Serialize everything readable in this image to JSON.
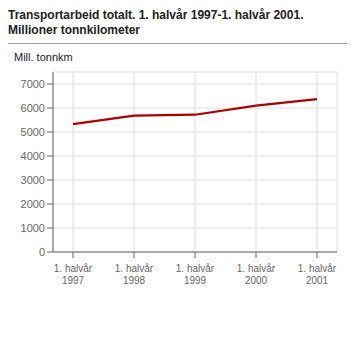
{
  "chart_data": {
    "type": "line",
    "title": "Transportarbeid totalt. 1. halvår 1997-1. halvår 2001.",
    "subtitle": "Millioner tonnkilometer",
    "ylabel": "Mill. tonnkm",
    "categories": [
      "1. halvår\n1997",
      "1. halvår\n1998",
      "1. halvår\n1999",
      "1. halvår\n2000",
      "1. halvår\n2001"
    ],
    "values": [
      5330,
      5680,
      5720,
      6100,
      6370
    ],
    "color": "#aa0000",
    "ylim": [
      0,
      7500
    ],
    "yticks": [
      0,
      1000,
      2000,
      3000,
      4000,
      5000,
      6000,
      7000
    ],
    "grid": true
  }
}
